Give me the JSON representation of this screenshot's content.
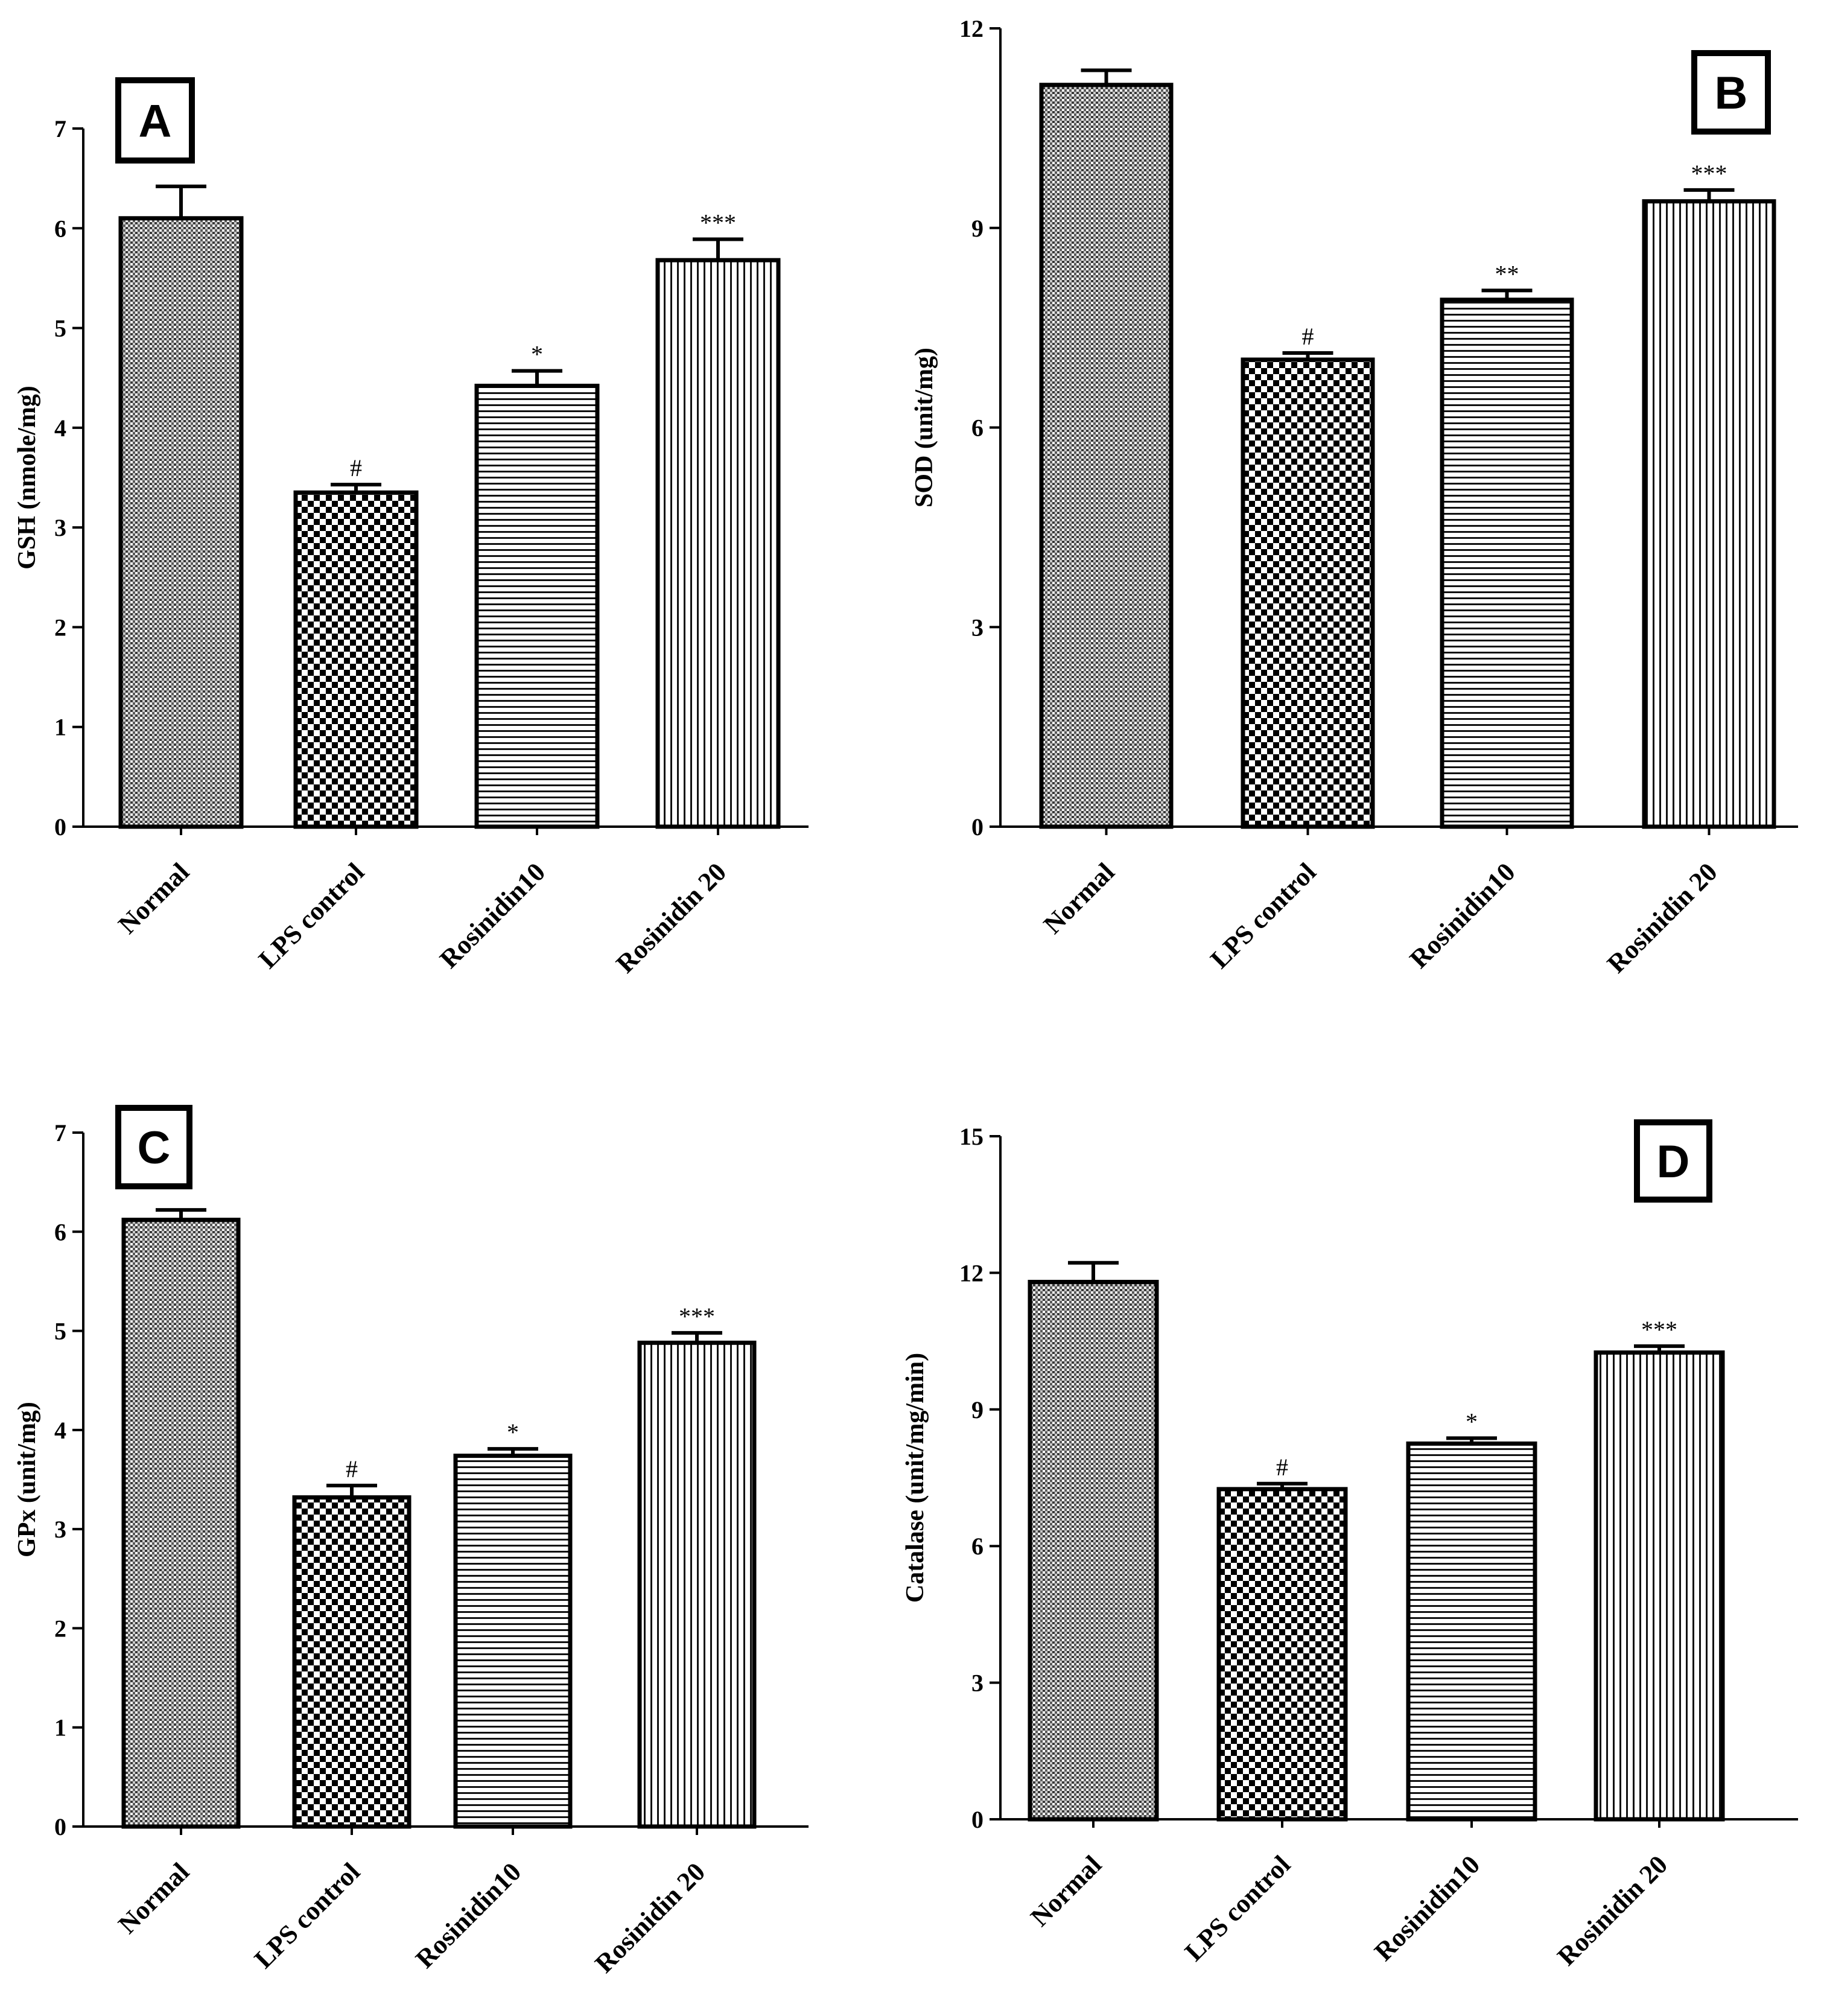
{
  "chart_data": [
    {
      "type": "bar",
      "panel": "A",
      "categories": [
        "Normal",
        "LPS control",
        "Rosinidin10",
        "Rosinidin 20"
      ],
      "values": [
        6.1,
        3.35,
        4.42,
        5.68
      ],
      "errors": [
        0.32,
        0.08,
        0.15,
        0.21
      ],
      "significance": [
        "",
        "#",
        "*",
        "***"
      ],
      "ylabel": "GSH (nmole/mg)",
      "ylim": [
        0,
        7
      ],
      "yticks": [
        0,
        1,
        2,
        3,
        4,
        5,
        6,
        7
      ]
    },
    {
      "type": "bar",
      "panel": "B",
      "categories": [
        "Normal",
        "LPS control",
        "Rosinidin10",
        "Rosinidin 20"
      ],
      "values": [
        11.15,
        7.02,
        7.92,
        9.4
      ],
      "errors": [
        0.22,
        0.1,
        0.14,
        0.17
      ],
      "significance": [
        "",
        "#",
        "**",
        "***"
      ],
      "ylabel": "SOD (unit/mg)",
      "ylim": [
        0,
        12
      ],
      "yticks": [
        0,
        3,
        6,
        9,
        12
      ]
    },
    {
      "type": "bar",
      "panel": "C",
      "categories": [
        "Normal",
        "LPS control",
        "Rosinidin10",
        "Rosinidin 20"
      ],
      "values": [
        6.12,
        3.32,
        3.74,
        4.88
      ],
      "errors": [
        0.1,
        0.12,
        0.07,
        0.1
      ],
      "significance": [
        "",
        "#",
        "*",
        "***"
      ],
      "ylabel": "GPx (unit/mg)",
      "ylim": [
        0,
        7
      ],
      "yticks": [
        0,
        1,
        2,
        3,
        4,
        5,
        6,
        7
      ]
    },
    {
      "type": "bar",
      "panel": "D",
      "categories": [
        "Normal",
        "LPS control",
        "Rosinidin10",
        "Rosinidin 20"
      ],
      "values": [
        11.8,
        7.25,
        8.25,
        10.25
      ],
      "errors": [
        0.42,
        0.12,
        0.12,
        0.14
      ],
      "significance": [
        "",
        "#",
        "*",
        "***"
      ],
      "ylabel": "Catalase (unit/mg/min)",
      "ylim": [
        0,
        15
      ],
      "yticks": [
        0,
        3,
        6,
        9,
        12,
        15
      ]
    }
  ]
}
